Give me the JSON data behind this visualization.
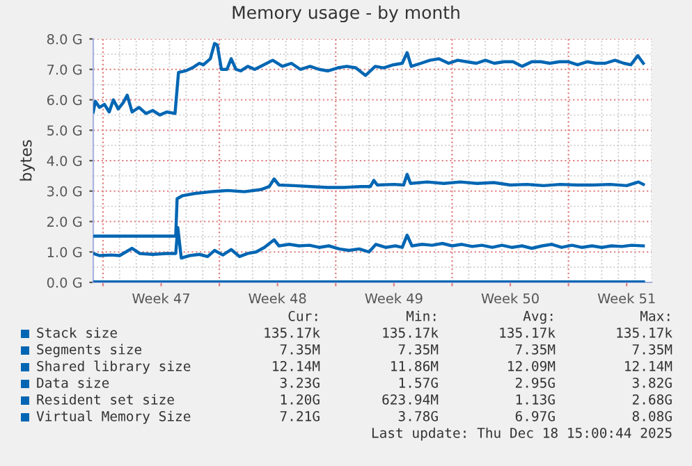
{
  "chart_data": {
    "type": "line",
    "title": "Memory usage - by month",
    "ylabel": "bytes",
    "xlim": [
      "2025-11-16T10:00",
      "2025-12-20T00:00"
    ],
    "ylim": [
      0,
      8.0
    ],
    "xticks": [
      {
        "value": "2025-11-17",
        "label": null
      },
      {
        "value": "2025-11-20T12:00",
        "label": "Week 47"
      },
      {
        "value": "2025-11-24",
        "label": null
      },
      {
        "value": "2025-11-27T12:00",
        "label": "Week 48"
      },
      {
        "value": "2025-12-01",
        "label": null
      },
      {
        "value": "2025-12-04T12:00",
        "label": "Week 49"
      },
      {
        "value": "2025-12-08",
        "label": null
      },
      {
        "value": "2025-12-11T12:00",
        "label": "Week 50"
      },
      {
        "value": "2025-12-15",
        "label": null
      },
      {
        "value": "2025-12-18T12:00",
        "label": "Week 51"
      }
    ],
    "yticks": [
      {
        "value": 0,
        "label": "0.0 G"
      },
      {
        "value": 1,
        "label": "1.0 G"
      },
      {
        "value": 2,
        "label": "2.0 G"
      },
      {
        "value": 3,
        "label": "3.0 G"
      },
      {
        "value": 4,
        "label": "4.0 G"
      },
      {
        "value": 5,
        "label": "5.0 G"
      },
      {
        "value": 6,
        "label": "6.0 G"
      },
      {
        "value": 7,
        "label": "7.0 G"
      },
      {
        "value": 8,
        "label": "8.0 G"
      }
    ],
    "grid": true,
    "legend": "bottom",
    "marker": "none",
    "line_style": "solid",
    "series": [
      {
        "name": "Stack size",
        "color": "#0066b3",
        "x": [
          "2025-11-16T10:00",
          "2025-12-19T12:00"
        ],
        "values": [
          0.000135,
          0.000135
        ]
      },
      {
        "name": "Segments size",
        "color": "#0066b3",
        "x": [
          "2025-11-16T10:00",
          "2025-12-19T12:00"
        ],
        "values": [
          0.00735,
          0.00735
        ]
      },
      {
        "name": "Shared library size",
        "color": "#0066b3",
        "x": [
          "2025-11-16T10:00",
          "2025-12-19T12:00"
        ],
        "values": [
          0.0121,
          0.0121
        ]
      },
      {
        "name": "Data size",
        "color": "#0066b3",
        "x": [
          "2025-11-16T10:00",
          "2025-11-21T09:00",
          "2025-11-21T11:00",
          "2025-11-21T19:00",
          "2025-11-22T12:00",
          "2025-11-23T12:00",
          "2025-11-24T00:00",
          "2025-11-24T12:00",
          "2025-11-25T12:00",
          "2025-11-26T12:00",
          "2025-11-27T00:00",
          "2025-11-27T07:00",
          "2025-11-27T14:00",
          "2025-11-28T12:00",
          "2025-11-29T12:00",
          "2025-11-30T12:00",
          "2025-12-01T12:00",
          "2025-12-02T12:00",
          "2025-12-03T02:00",
          "2025-12-03T07:00",
          "2025-12-03T12:00",
          "2025-12-04T12:00",
          "2025-12-05T02:00",
          "2025-12-05T07:00",
          "2025-12-05T12:00",
          "2025-12-06T12:00",
          "2025-12-07T12:00",
          "2025-12-08T12:00",
          "2025-12-09T12:00",
          "2025-12-10T12:00",
          "2025-12-11T12:00",
          "2025-12-12T12:00",
          "2025-12-13T12:00",
          "2025-12-14T12:00",
          "2025-12-15T12:00",
          "2025-12-16T12:00",
          "2025-12-17T12:00",
          "2025-12-18T12:00",
          "2025-12-19T05:00",
          "2025-12-19T12:00"
        ],
        "values": [
          1.52,
          1.52,
          2.75,
          2.85,
          2.92,
          2.98,
          3.0,
          3.02,
          2.98,
          3.05,
          3.15,
          3.4,
          3.2,
          3.18,
          3.15,
          3.12,
          3.12,
          3.15,
          3.15,
          3.35,
          3.2,
          3.22,
          3.2,
          3.55,
          3.25,
          3.3,
          3.25,
          3.3,
          3.25,
          3.28,
          3.2,
          3.22,
          3.18,
          3.22,
          3.2,
          3.2,
          3.22,
          3.18,
          3.3,
          3.22
        ]
      },
      {
        "name": "Resident set size",
        "color": "#0066b3",
        "x": [
          "2025-11-16T10:00",
          "2025-11-16T19:00",
          "2025-11-17T12:00",
          "2025-11-18T00:00",
          "2025-11-18T18:00",
          "2025-11-19T05:00",
          "2025-11-20T00:00",
          "2025-11-20T19:00",
          "2025-11-21T09:00",
          "2025-11-21T12:00",
          "2025-11-21T17:00",
          "2025-11-22T05:00",
          "2025-11-22T19:00",
          "2025-11-23T07:00",
          "2025-11-23T17:00",
          "2025-11-24T05:00",
          "2025-11-24T17:00",
          "2025-11-25T05:00",
          "2025-11-25T17:00",
          "2025-11-26T05:00",
          "2025-11-26T17:00",
          "2025-11-27T07:00",
          "2025-11-27T14:00",
          "2025-11-28T05:00",
          "2025-11-28T19:00",
          "2025-11-29T10:00",
          "2025-11-30T00:00",
          "2025-11-30T14:00",
          "2025-12-01T05:00",
          "2025-12-01T19:00",
          "2025-12-02T10:00",
          "2025-12-03T00:00",
          "2025-12-03T10:00",
          "2025-12-04T00:00",
          "2025-12-04T14:00",
          "2025-12-05T00:00",
          "2025-12-05T07:00",
          "2025-12-05T14:00",
          "2025-12-06T05:00",
          "2025-12-06T19:00",
          "2025-12-07T10:00",
          "2025-12-08T00:00",
          "2025-12-08T14:00",
          "2025-12-09T05:00",
          "2025-12-09T19:00",
          "2025-12-10T10:00",
          "2025-12-11T00:00",
          "2025-12-11T14:00",
          "2025-12-12T05:00",
          "2025-12-12T19:00",
          "2025-12-13T10:00",
          "2025-12-14T00:00",
          "2025-12-14T14:00",
          "2025-12-15T05:00",
          "2025-12-15T19:00",
          "2025-12-16T10:00",
          "2025-12-17T00:00",
          "2025-12-17T14:00",
          "2025-12-18T05:00",
          "2025-12-18T19:00",
          "2025-12-19T12:00"
        ],
        "values": [
          0.95,
          0.88,
          0.9,
          0.88,
          1.12,
          0.95,
          0.92,
          0.95,
          0.95,
          1.8,
          0.8,
          0.88,
          0.92,
          0.85,
          1.05,
          0.9,
          1.08,
          0.85,
          0.95,
          1.0,
          1.15,
          1.4,
          1.2,
          1.25,
          1.2,
          1.22,
          1.15,
          1.2,
          1.1,
          1.05,
          1.1,
          1.0,
          1.25,
          1.15,
          1.2,
          1.15,
          1.55,
          1.2,
          1.25,
          1.22,
          1.28,
          1.2,
          1.25,
          1.18,
          1.22,
          1.15,
          1.22,
          1.15,
          1.2,
          1.12,
          1.2,
          1.25,
          1.15,
          1.22,
          1.15,
          1.2,
          1.15,
          1.2,
          1.18,
          1.22,
          1.2
        ]
      },
      {
        "name": "Virtual Memory Size",
        "color": "#0066b3",
        "x": [
          "2025-11-16T10:00",
          "2025-11-16T13:00",
          "2025-11-16T19:00",
          "2025-11-17T02:00",
          "2025-11-17T09:00",
          "2025-11-17T15:00",
          "2025-11-17T22:00",
          "2025-11-18T05:00",
          "2025-11-18T11:00",
          "2025-11-18T18:00",
          "2025-11-19T04:00",
          "2025-11-19T14:00",
          "2025-11-20T00:00",
          "2025-11-20T10:00",
          "2025-11-20T20:00",
          "2025-11-21T08:00",
          "2025-11-21T13:00",
          "2025-11-21T23:00",
          "2025-11-22T09:00",
          "2025-11-22T19:00",
          "2025-11-23T01:00",
          "2025-11-23T11:00",
          "2025-11-23T17:00",
          "2025-11-23T21:00",
          "2025-11-24T03:00",
          "2025-11-24T11:00",
          "2025-11-24T17:00",
          "2025-11-25T00:00",
          "2025-11-25T07:00",
          "2025-11-25T17:00",
          "2025-11-26T03:00",
          "2025-11-26T16:00",
          "2025-11-27T05:00",
          "2025-11-27T19:00",
          "2025-11-28T08:00",
          "2025-11-28T21:00",
          "2025-11-29T11:00",
          "2025-11-30T00:00",
          "2025-11-30T13:00",
          "2025-12-01T03:00",
          "2025-12-01T16:00",
          "2025-12-02T05:00",
          "2025-12-02T19:00",
          "2025-12-03T09:00",
          "2025-12-03T21:00",
          "2025-12-04T11:00",
          "2025-12-05T00:00",
          "2025-12-05T07:00",
          "2025-12-05T13:00",
          "2025-12-06T03:00",
          "2025-12-06T16:00",
          "2025-12-07T05:00",
          "2025-12-07T19:00",
          "2025-12-08T08:00",
          "2025-12-08T21:00",
          "2025-12-09T11:00",
          "2025-12-10T00:00",
          "2025-12-10T13:00",
          "2025-12-11T03:00",
          "2025-12-11T16:00",
          "2025-12-12T05:00",
          "2025-12-12T19:00",
          "2025-12-13T08:00",
          "2025-12-13T21:00",
          "2025-12-14T11:00",
          "2025-12-15T00:00",
          "2025-12-15T13:00",
          "2025-12-16T03:00",
          "2025-12-16T16:00",
          "2025-12-17T05:00",
          "2025-12-17T19:00",
          "2025-12-18T08:00",
          "2025-12-18T18:00",
          "2025-12-19T04:00",
          "2025-12-19T12:00"
        ],
        "values": [
          5.6,
          5.95,
          5.75,
          5.85,
          5.6,
          6.0,
          5.7,
          5.9,
          6.15,
          5.6,
          5.75,
          5.55,
          5.65,
          5.5,
          5.6,
          5.55,
          6.9,
          6.95,
          7.05,
          7.2,
          7.15,
          7.35,
          7.85,
          7.8,
          7.0,
          7.0,
          7.35,
          7.0,
          6.95,
          7.1,
          7.0,
          7.15,
          7.3,
          7.1,
          7.2,
          7.0,
          7.1,
          7.0,
          6.95,
          7.05,
          7.1,
          7.05,
          6.8,
          7.1,
          7.05,
          7.15,
          7.2,
          7.55,
          7.1,
          7.2,
          7.3,
          7.35,
          7.2,
          7.3,
          7.25,
          7.2,
          7.3,
          7.2,
          7.25,
          7.25,
          7.1,
          7.25,
          7.25,
          7.2,
          7.25,
          7.25,
          7.15,
          7.25,
          7.2,
          7.2,
          7.3,
          7.2,
          7.15,
          7.45,
          7.2
        ]
      }
    ],
    "annotations": [
      "Cur:",
      "Min:",
      "Avg:",
      "Max:",
      "135.17k",
      "135.17k",
      "135.17k",
      "135.17k",
      "7.35M",
      "7.35M",
      "7.35M",
      "7.35M",
      "12.14M",
      "11.86M",
      "12.09M",
      "12.14M",
      "3.23G",
      "1.57G",
      "2.95G",
      "3.82G",
      "1.20G",
      "623.94M",
      "1.13G",
      "2.68G",
      "7.21G",
      "3.78G",
      "6.97G",
      "8.08G",
      "Last update: Thu Dec 18 15:00:44 2025"
    ]
  }
}
